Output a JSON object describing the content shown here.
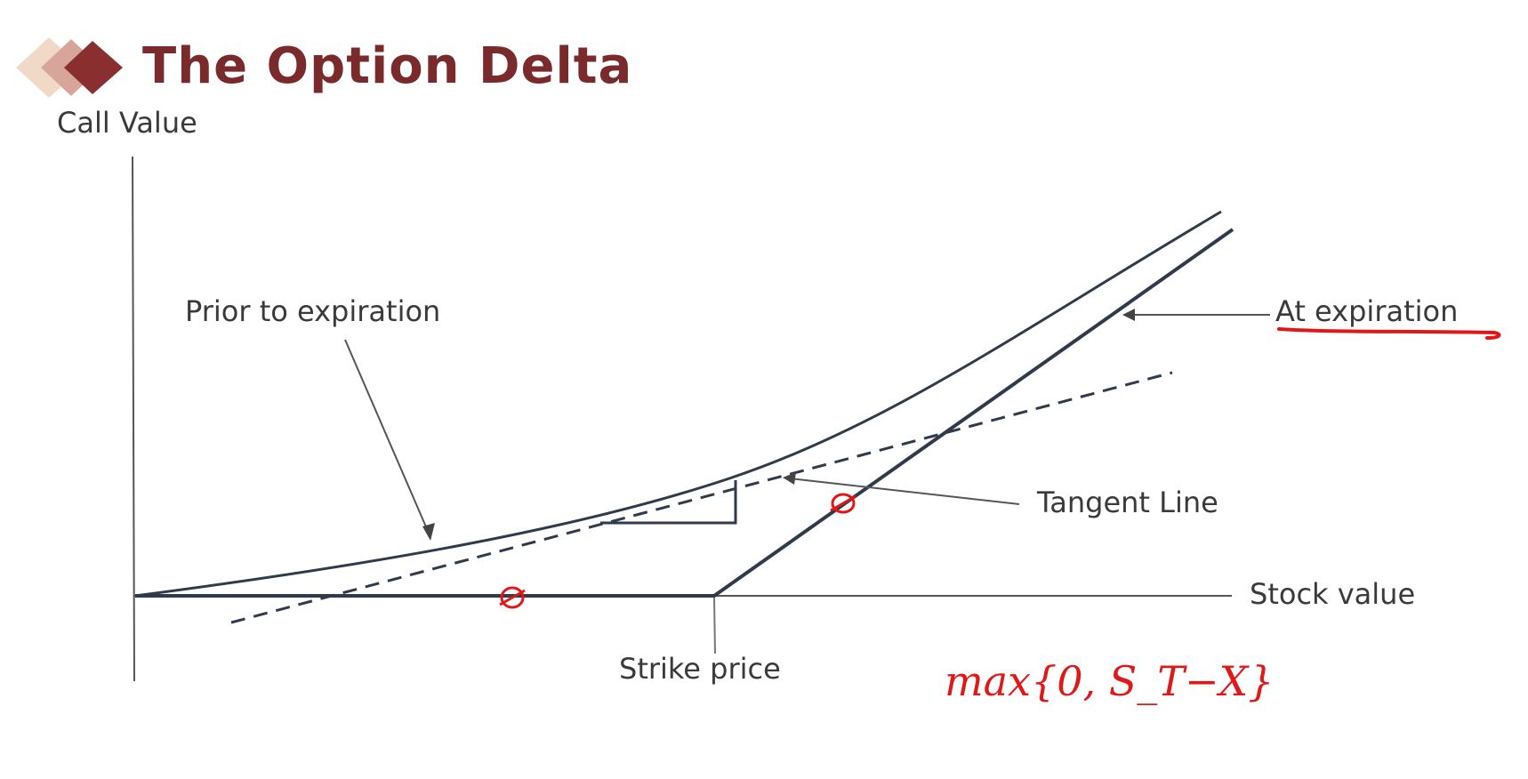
{
  "slide": {
    "title": "The Option Delta",
    "accent_color": "#7a2a2a",
    "logo_icon": "stacked-diamonds-icon"
  },
  "diagram": {
    "y_axis_label": "Call Value",
    "x_axis_label": "Stock value",
    "labels": {
      "prior_to_expiration": "Prior to expiration",
      "at_expiration": "At expiration",
      "tangent_line": "Tangent Line",
      "strike_price": "Strike price"
    },
    "curve_color": "#2f3a4a",
    "annotation_color": "#e01818"
  },
  "annotations": {
    "formula": "max{0, S_T−X}"
  }
}
